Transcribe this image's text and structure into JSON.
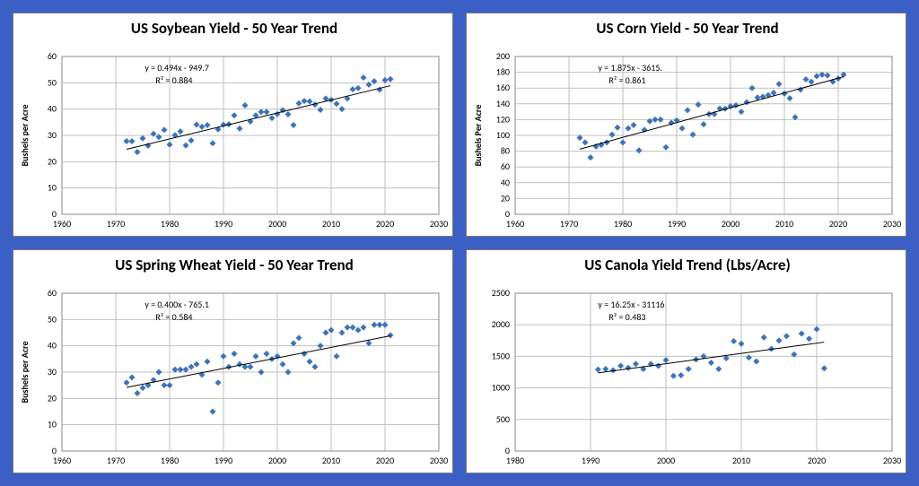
{
  "background_color": "#3b5fc4",
  "panel_background": "#ffffff",
  "panel_border": "#7a7a7a",
  "grid_color": "#bfbfbf",
  "marker_color": "#3e73b9",
  "marker_size": 7,
  "label_fontsize": 10,
  "title_fontsize": 17,
  "charts": [
    {
      "id": "soybean",
      "title": "US Soybean Yield - 50 Year Trend",
      "ylabel": "Bushels per Acre",
      "equation": "y = 0.494x - 949.7",
      "r2": "R² = 0.884",
      "xlim": [
        1960,
        2030
      ],
      "xtick_step": 10,
      "ylim": [
        0,
        60
      ],
      "ytick_step": 10,
      "trend_x": [
        1972,
        2021
      ],
      "trend_y": [
        24.7,
        48.9
      ],
      "x": [
        1972,
        1973,
        1974,
        1975,
        1976,
        1977,
        1978,
        1979,
        1980,
        1981,
        1982,
        1983,
        1984,
        1985,
        1986,
        1987,
        1988,
        1989,
        1990,
        1991,
        1992,
        1993,
        1994,
        1995,
        1996,
        1997,
        1998,
        1999,
        2000,
        2001,
        2002,
        2003,
        2004,
        2005,
        2006,
        2007,
        2008,
        2009,
        2010,
        2011,
        2012,
        2013,
        2014,
        2015,
        2016,
        2017,
        2018,
        2019,
        2020,
        2021
      ],
      "y": [
        27.8,
        27.8,
        23.7,
        28.9,
        26.1,
        30.6,
        29.4,
        32.1,
        26.5,
        30.1,
        31.5,
        26.2,
        28.1,
        34.1,
        33.3,
        33.9,
        27.0,
        32.3,
        34.1,
        34.2,
        37.6,
        32.6,
        41.4,
        35.3,
        37.6,
        38.9,
        38.9,
        36.6,
        38.1,
        39.6,
        38.0,
        33.9,
        42.2,
        43.1,
        42.9,
        41.7,
        39.7,
        44.0,
        43.5,
        42.0,
        40.0,
        44.0,
        47.5,
        48.0,
        52.0,
        49.3,
        50.6,
        47.4,
        51.0,
        51.4
      ]
    },
    {
      "id": "corn",
      "title": "US Corn Yield - 50 Year Trend",
      "ylabel": "Bushels Per Acre",
      "equation": "y = 1.875x - 3615.",
      "r2": "R² = 0.861",
      "xlim": [
        1960,
        2030
      ],
      "xtick_step": 10,
      "ylim": [
        0,
        200
      ],
      "ytick_step": 20,
      "trend_x": [
        1972,
        2021
      ],
      "trend_y": [
        82.5,
        174.4
      ],
      "x": [
        1972,
        1973,
        1974,
        1975,
        1976,
        1977,
        1978,
        1979,
        1980,
        1981,
        1982,
        1983,
        1984,
        1985,
        1986,
        1987,
        1988,
        1989,
        1990,
        1991,
        1992,
        1993,
        1994,
        1995,
        1996,
        1997,
        1998,
        1999,
        2000,
        2001,
        2002,
        2003,
        2004,
        2005,
        2006,
        2007,
        2008,
        2009,
        2010,
        2011,
        2012,
        2013,
        2014,
        2015,
        2016,
        2017,
        2018,
        2019,
        2020,
        2021
      ],
      "y": [
        97,
        91,
        72,
        86,
        88,
        91,
        101,
        110,
        91,
        109,
        113,
        81,
        107,
        118,
        120,
        120,
        85,
        116,
        119,
        109,
        132,
        101,
        139,
        114,
        127,
        127,
        134,
        134,
        137,
        138,
        130,
        142,
        160,
        148,
        149,
        151,
        154,
        165,
        153,
        147,
        123,
        158,
        171,
        168,
        175,
        177,
        176,
        168,
        172,
        177
      ]
    },
    {
      "id": "wheat",
      "title": "US Spring Wheat Yield - 50 Year Trend",
      "ylabel": "Bushels per Acre",
      "equation": "y = 0.400x - 765.1",
      "r2": "R² = 0.584",
      "xlim": [
        1960,
        2030
      ],
      "xtick_step": 10,
      "ylim": [
        0,
        60
      ],
      "ytick_step": 10,
      "trend_x": [
        1972,
        2021
      ],
      "trend_y": [
        24.2,
        43.8
      ],
      "x": [
        1972,
        1973,
        1974,
        1975,
        1976,
        1977,
        1978,
        1979,
        1980,
        1981,
        1982,
        1983,
        1984,
        1985,
        1986,
        1987,
        1988,
        1989,
        1990,
        1991,
        1992,
        1993,
        1994,
        1995,
        1996,
        1997,
        1998,
        1999,
        2000,
        2001,
        2002,
        2003,
        2004,
        2005,
        2006,
        2007,
        2008,
        2009,
        2010,
        2011,
        2012,
        2013,
        2014,
        2015,
        2016,
        2017,
        2018,
        2019,
        2020,
        2021
      ],
      "y": [
        26,
        28,
        22,
        24,
        25,
        27,
        30,
        25,
        25,
        31,
        31,
        31,
        32,
        33,
        29,
        34,
        15,
        26,
        36,
        32,
        37,
        33,
        32,
        32,
        36,
        30,
        37,
        35,
        36,
        33,
        30,
        41,
        43,
        37,
        34,
        32,
        40,
        45,
        46,
        36,
        45,
        47,
        47,
        46,
        47,
        41,
        48,
        48,
        48,
        44
      ]
    },
    {
      "id": "canola",
      "title": "US Canola Yield Trend (Lbs/Acre)",
      "ylabel": "",
      "equation": "y = 16.25x - 31116",
      "r2": "R² = 0.483",
      "xlim": [
        1980,
        2030
      ],
      "xtick_step": 10,
      "ylim": [
        0,
        2500
      ],
      "ytick_step": 500,
      "trend_x": [
        1991,
        2021
      ],
      "trend_y": [
        1238,
        1725
      ],
      "x": [
        1991,
        1992,
        1993,
        1994,
        1995,
        1996,
        1997,
        1998,
        1999,
        2000,
        2001,
        2002,
        2003,
        2004,
        2005,
        2006,
        2007,
        2008,
        2009,
        2010,
        2011,
        2012,
        2013,
        2014,
        2015,
        2016,
        2017,
        2018,
        2019,
        2020,
        2021
      ],
      "y": [
        1290,
        1300,
        1280,
        1350,
        1320,
        1380,
        1300,
        1380,
        1350,
        1440,
        1190,
        1200,
        1300,
        1450,
        1500,
        1400,
        1300,
        1470,
        1740,
        1700,
        1480,
        1420,
        1800,
        1620,
        1750,
        1820,
        1530,
        1860,
        1780,
        1930,
        1310
      ]
    }
  ]
}
